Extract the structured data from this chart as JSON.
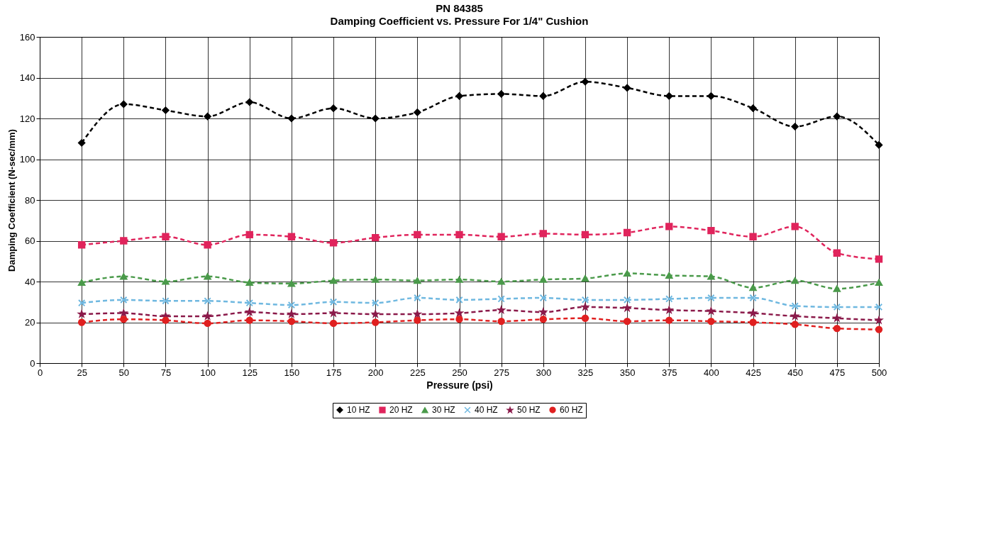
{
  "chart_data": {
    "type": "line",
    "title": "PN 84385",
    "subtitle": "Damping Coefficient vs. Pressure For 1/4\" Cushion",
    "xlabel": "Pressure (psi)",
    "ylabel": "Damping Coefficient (N-sec/mm)",
    "x": [
      25,
      50,
      75,
      100,
      125,
      150,
      175,
      200,
      225,
      250,
      275,
      300,
      325,
      350,
      375,
      400,
      425,
      450,
      475,
      500
    ],
    "series": [
      {
        "name": "10 HZ",
        "color": "#000000",
        "marker": "diamond",
        "values": [
          108,
          127,
          124,
          121,
          128,
          120,
          125,
          120,
          123,
          131,
          132,
          131,
          138,
          135,
          131,
          131,
          125,
          116,
          121,
          107
        ]
      },
      {
        "name": "20 HZ",
        "color": "#e0245c",
        "marker": "square",
        "values": [
          58,
          60,
          62,
          58,
          63,
          62,
          59,
          61.5,
          63,
          63,
          62,
          63.5,
          63,
          64,
          67,
          65,
          62,
          67,
          54,
          51
        ]
      },
      {
        "name": "30 HZ",
        "color": "#4a9a4a",
        "marker": "triangle",
        "values": [
          39.5,
          42.5,
          40,
          42.5,
          39.5,
          39,
          40.5,
          41,
          40.5,
          41,
          40,
          41,
          41.5,
          44,
          43,
          42.5,
          37,
          40.5,
          36.5,
          39.5
        ]
      },
      {
        "name": "40 HZ",
        "color": "#6fb8e0",
        "marker": "cross",
        "values": [
          29.5,
          31,
          30.5,
          30.5,
          29.5,
          28.5,
          30,
          29.5,
          32,
          31,
          31.5,
          32,
          31,
          31,
          31.5,
          32,
          32,
          28,
          27.5,
          27.5
        ]
      },
      {
        "name": "50 HZ",
        "color": "#8b1a4a",
        "marker": "star",
        "values": [
          24,
          24.5,
          23,
          23,
          25,
          24,
          24.5,
          24,
          24,
          24.5,
          26,
          25,
          27.5,
          27,
          26,
          25.5,
          24.5,
          23,
          22,
          21
        ]
      },
      {
        "name": "60 HZ",
        "color": "#e02020",
        "marker": "circle",
        "values": [
          20,
          21.5,
          21,
          19.5,
          21,
          20.5,
          19.5,
          20,
          21,
          21.5,
          20.5,
          21.5,
          22,
          20.5,
          21,
          20.5,
          20,
          19,
          17,
          16.5
        ]
      }
    ],
    "xlim": [
      0,
      500
    ],
    "xticks": [
      0,
      25,
      50,
      75,
      100,
      125,
      150,
      175,
      200,
      225,
      250,
      275,
      300,
      325,
      350,
      375,
      400,
      425,
      450,
      475,
      500
    ],
    "ylim": [
      0,
      160
    ],
    "yticks": [
      0,
      20,
      40,
      60,
      80,
      100,
      120,
      140,
      160
    ],
    "grid": true,
    "legend": "bottom",
    "line_style": "dashed"
  }
}
